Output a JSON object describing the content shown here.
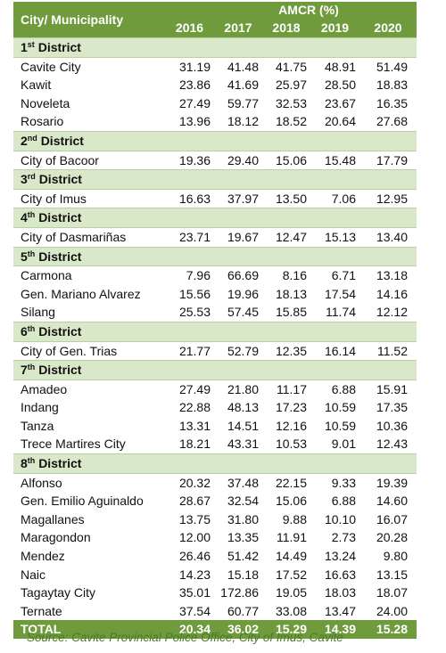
{
  "header": {
    "city": "City/ Municipality",
    "group": "AMCR (%)",
    "years": [
      "2016",
      "2017",
      "2018",
      "2019",
      "2020"
    ]
  },
  "groups": [
    {
      "district": {
        "ordinal": "1",
        "suffix": "st",
        "name": "District"
      },
      "rows": [
        {
          "city": "Cavite City",
          "values": [
            "31.19",
            "41.48",
            "41.75",
            "48.91",
            "51.49"
          ]
        },
        {
          "city": "Kawit",
          "values": [
            "23.86",
            "41.69",
            "25.97",
            "28.50",
            "18.83"
          ]
        },
        {
          "city": "Noveleta",
          "values": [
            "27.49",
            "59.77",
            "32.53",
            "23.67",
            "16.35"
          ]
        },
        {
          "city": "Rosario",
          "values": [
            "13.96",
            "18.12",
            "18.52",
            "20.64",
            "27.68"
          ]
        }
      ]
    },
    {
      "district": {
        "ordinal": "2",
        "suffix": "nd",
        "name": "District"
      },
      "rows": [
        {
          "city": "City of Bacoor",
          "values": [
            "19.36",
            "29.40",
            "15.06",
            "15.48",
            "17.79"
          ]
        }
      ]
    },
    {
      "district": {
        "ordinal": "3",
        "suffix": "rd",
        "name": "District"
      },
      "rows": [
        {
          "city": "City of Imus",
          "values": [
            "16.63",
            "37.97",
            "13.50",
            "7.06",
            "12.95"
          ]
        }
      ]
    },
    {
      "district": {
        "ordinal": "4",
        "suffix": "th",
        "name": "District"
      },
      "rows": [
        {
          "city": "City of Dasmariñas",
          "values": [
            "23.71",
            "19.67",
            "12.47",
            "15.13",
            "13.40"
          ]
        }
      ]
    },
    {
      "district": {
        "ordinal": "5",
        "suffix": "th",
        "name": "District"
      },
      "rows": [
        {
          "city": "Carmona",
          "values": [
            "7.96",
            "66.69",
            "8.16",
            "6.71",
            "13.18"
          ]
        },
        {
          "city": "Gen. Mariano Alvarez",
          "values": [
            "15.56",
            "19.96",
            "18.13",
            "17.54",
            "14.16"
          ]
        },
        {
          "city": "Silang",
          "values": [
            "25.53",
            "57.45",
            "15.85",
            "11.74",
            "12.12"
          ]
        }
      ]
    },
    {
      "district": {
        "ordinal": "6",
        "suffix": "th",
        "name": "District"
      },
      "rows": [
        {
          "city": "City of Gen. Trias",
          "values": [
            "21.77",
            "52.79",
            "12.35",
            "16.14",
            "11.52"
          ]
        }
      ]
    },
    {
      "district": {
        "ordinal": "7",
        "suffix": "th",
        "name": "District"
      },
      "rows": [
        {
          "city": "Amadeo",
          "values": [
            "27.49",
            "21.80",
            "11.17",
            "6.88",
            "15.91"
          ]
        },
        {
          "city": "Indang",
          "values": [
            "22.88",
            "48.13",
            "17.23",
            "10.59",
            "17.35"
          ]
        },
        {
          "city": "Tanza",
          "values": [
            "13.31",
            "14.51",
            "12.16",
            "10.59",
            "10.36"
          ]
        },
        {
          "city": "Trece Martires City",
          "values": [
            "18.21",
            "43.31",
            "10.53",
            "9.01",
            "12.43"
          ]
        }
      ]
    },
    {
      "district": {
        "ordinal": "8",
        "suffix": "th",
        "name": "District"
      },
      "rows": [
        {
          "city": "Alfonso",
          "values": [
            "20.32",
            "37.48",
            "22.15",
            "9.33",
            "19.39"
          ]
        },
        {
          "city": "Gen. Emilio Aguinaldo",
          "values": [
            "28.67",
            "32.54",
            "15.06",
            "6.88",
            "14.60"
          ]
        },
        {
          "city": "Magallanes",
          "values": [
            "13.75",
            "31.80",
            "9.88",
            "10.10",
            "16.07"
          ]
        },
        {
          "city": "Maragondon",
          "values": [
            "12.00",
            "13.35",
            "11.91",
            "2.73",
            "20.28"
          ]
        },
        {
          "city": "Mendez",
          "values": [
            "26.46",
            "51.42",
            "14.49",
            "13.24",
            "9.80"
          ]
        },
        {
          "city": "Naic",
          "values": [
            "14.23",
            "15.18",
            "17.52",
            "16.63",
            "13.15"
          ]
        },
        {
          "city": "Tagaytay City",
          "values": [
            "35.01",
            "172.86",
            "19.05",
            "18.03",
            "18.07"
          ]
        },
        {
          "city": "Ternate",
          "values": [
            "37.54",
            "60.77",
            "33.08",
            "13.47",
            "24.00"
          ]
        }
      ]
    }
  ],
  "total": {
    "label": "TOTAL",
    "values": [
      "20.34",
      "36.02",
      "15.29",
      "14.39",
      "15.28"
    ]
  },
  "source": "Source: Cavite Provincial Police Office, City of Imus, Cavite"
}
